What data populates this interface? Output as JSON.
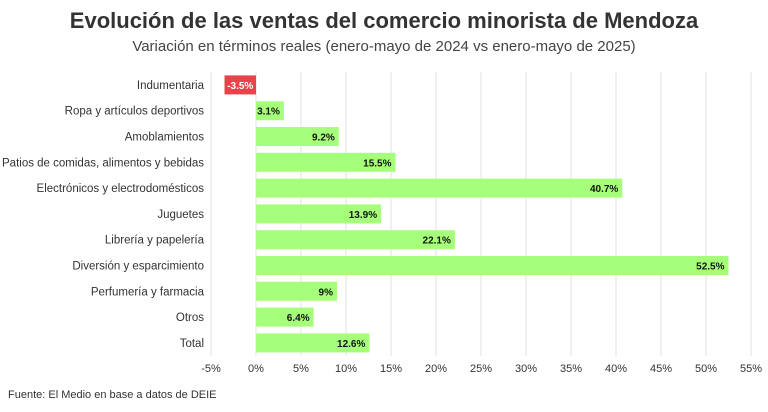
{
  "title": "Evolución de las ventas del comercio minorista de Mendoza",
  "subtitle": "Variación en términos reales (enero-mayo de 2024 vs enero-mayo de 2025)",
  "source": "Fuente: El Medio en base a datos de DEIE",
  "colors": {
    "positive": "#a6ff7a",
    "negative": "#e8434b",
    "grid": "#e0e0e0",
    "text": "#333333"
  },
  "chart_data": {
    "type": "bar",
    "orientation": "horizontal",
    "categories": [
      "Indumentaria",
      "Ropa y artículos deportivos",
      "Amoblamientos",
      "Patios de comidas, alimentos y bebidas",
      "Electrónicos y electrodomésticos",
      "Juguetes",
      "Librería y papelería",
      "Diversión y esparcimiento",
      "Perfumería y farmacia",
      "Otros",
      "Total"
    ],
    "values": [
      -3.5,
      3.1,
      9.2,
      15.5,
      40.7,
      13.9,
      22.1,
      52.5,
      9,
      6.4,
      12.6
    ],
    "value_labels": [
      "-3.5%",
      "3.1%",
      "9.2%",
      "15.5%",
      "40.7%",
      "13.9%",
      "22.1%",
      "52.5%",
      "9%",
      "6.4%",
      "12.6%"
    ],
    "xlim": [
      -5,
      55
    ],
    "x_ticks": [
      -5,
      0,
      5,
      10,
      15,
      20,
      25,
      30,
      35,
      40,
      45,
      50,
      55
    ],
    "x_tick_labels": [
      "-5%",
      "0%",
      "5%",
      "10%",
      "15%",
      "20%",
      "25%",
      "30%",
      "35%",
      "40%",
      "45%",
      "50%",
      "55%"
    ],
    "grid": true
  }
}
